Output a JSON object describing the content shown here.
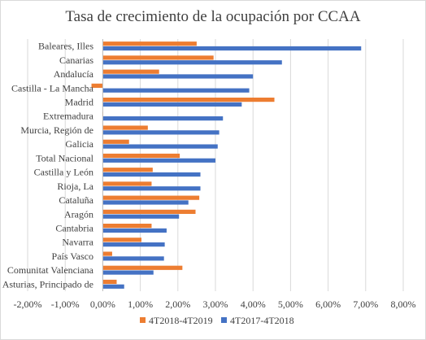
{
  "chart_data": {
    "type": "bar",
    "orientation": "horizontal",
    "title": "Tasa de crecimiento  de la ocupación por CCAA",
    "categories": [
      "Baleares, Illes",
      "Canarias",
      "Andalucía",
      "Castilla - La Mancha",
      "Madrid",
      "Extremadura",
      "Murcia, Región de",
      "Galicia",
      "Total Nacional",
      "Castilla y León",
      "Rioja, La",
      "Cataluña",
      "Aragón",
      "Cantabria",
      "Navarra",
      "País Vasco",
      "Comunitat Valenciana",
      "Asturias, Principado de"
    ],
    "series": [
      {
        "name": "4T2018-4T2019",
        "color": "#ED7D31",
        "values": [
          2.5,
          2.95,
          1.5,
          -0.3,
          4.57,
          0.0,
          1.2,
          0.7,
          2.05,
          1.33,
          1.3,
          2.57,
          2.47,
          1.3,
          1.03,
          0.25,
          2.12,
          0.37
        ]
      },
      {
        "name": "4T2017-4T2018",
        "color": "#4472C4",
        "values": [
          6.88,
          4.77,
          4.0,
          3.9,
          3.7,
          3.2,
          3.1,
          3.06,
          3.0,
          2.6,
          2.6,
          2.28,
          2.03,
          1.7,
          1.65,
          1.63,
          1.35,
          0.57
        ]
      }
    ],
    "xlim": [
      -2,
      8
    ],
    "xticks": [
      "-2,00%",
      "-1,00%",
      "0,00%",
      "1,00%",
      "2,00%",
      "3,00%",
      "4,00%",
      "5,00%",
      "6,00%",
      "7,00%",
      "8,00%"
    ],
    "grid": true,
    "legend_position": "bottom"
  }
}
